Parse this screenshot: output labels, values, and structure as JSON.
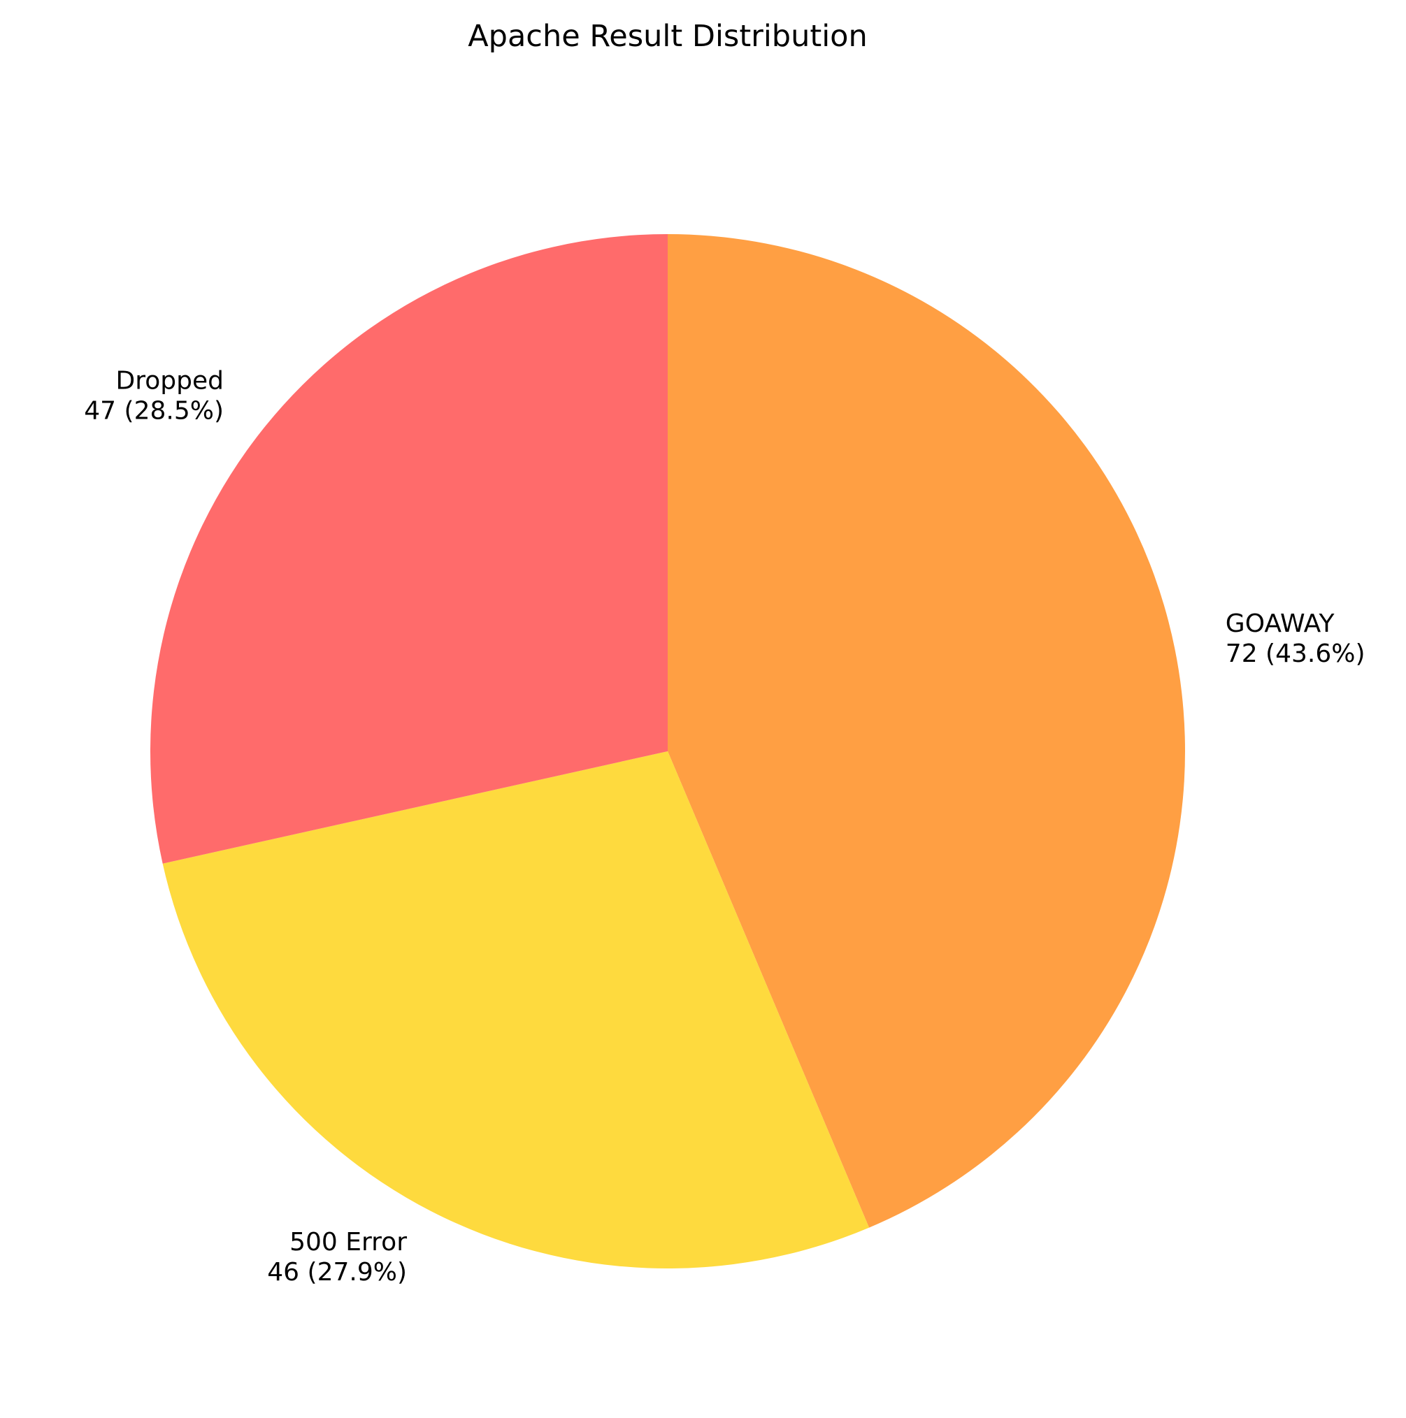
{
  "chart_data": {
    "type": "pie",
    "title": "Apache Result Distribution",
    "start_angle_deg": 90,
    "direction": "clockwise",
    "slices": [
      {
        "label": "GOAWAY",
        "value": 72,
        "percent_text": "43.6%",
        "display": "72 (43.6%)",
        "color": "#ff9f43"
      },
      {
        "label": "500 Error",
        "value": 46,
        "percent_text": "27.9%",
        "display": "46 (27.9%)",
        "color": "#feda3e"
      },
      {
        "label": "Dropped",
        "value": 47,
        "percent_text": "28.5%",
        "display": "47 (28.5%)",
        "color": "#ff6b6b"
      }
    ]
  }
}
